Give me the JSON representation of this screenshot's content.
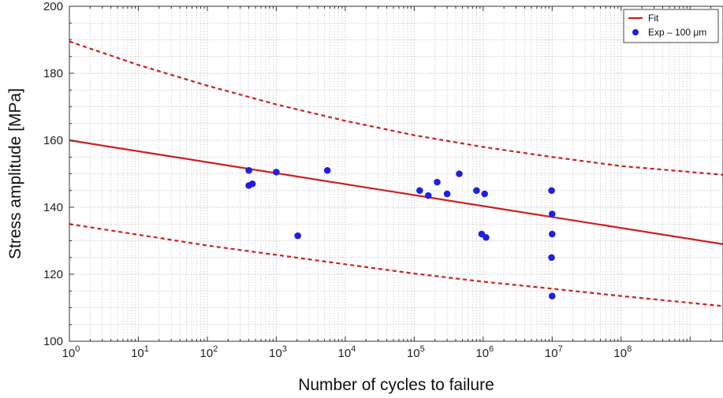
{
  "chart_data": {
    "type": "scatter",
    "xlabel": "Number of cycles to failure",
    "ylabel": "Stress amplitude [MPa]",
    "xscale": "log",
    "xlim": [
      1,
      3000000000
    ],
    "ylim": [
      100,
      200
    ],
    "grid": true,
    "legend_position": "top-right",
    "x_ticks": [
      {
        "value": 1,
        "base": "10",
        "exp": "0"
      },
      {
        "value": 10,
        "base": "10",
        "exp": "1"
      },
      {
        "value": 100,
        "base": "10",
        "exp": "2"
      },
      {
        "value": 1000,
        "base": "10",
        "exp": "3"
      },
      {
        "value": 10000,
        "base": "10",
        "exp": "4"
      },
      {
        "value": 100000,
        "base": "10",
        "exp": "5"
      },
      {
        "value": 1000000,
        "base": "10",
        "exp": "6"
      },
      {
        "value": 10000000,
        "base": "10",
        "exp": "7"
      },
      {
        "value": 100000000,
        "base": "10",
        "exp": "8"
      }
    ],
    "y_ticks": [
      "100",
      "120",
      "140",
      "160",
      "180",
      "200"
    ],
    "series": [
      {
        "name": "Fit",
        "kind": "line",
        "style": "solid",
        "color": "#cc1f1f",
        "x": [
          1,
          3000000000
        ],
        "y": [
          160,
          129
        ]
      },
      {
        "kind": "line",
        "style": "dashed",
        "color": "#cc1f1f",
        "x": [
          1,
          10,
          100,
          1000,
          10000,
          100000,
          1000000,
          10000000,
          100000000,
          3000000000
        ],
        "y": [
          189.5,
          182.5,
          176.3,
          170.7,
          165.8,
          161.5,
          158,
          155,
          152.3,
          149.7
        ]
      },
      {
        "kind": "line",
        "style": "dashed",
        "color": "#cc1f1f",
        "x": [
          1,
          10,
          100,
          1000,
          10000,
          100000,
          1000000,
          10000000,
          100000000,
          3000000000
        ],
        "y": [
          135,
          131.8,
          128.6,
          125.8,
          123,
          120.2,
          117.8,
          115.7,
          113.5,
          110.5
        ]
      },
      {
        "name": "Exp – 100 μm",
        "kind": "scatter",
        "color": "#1f1fe0",
        "points": [
          [
            400,
            151
          ],
          [
            400,
            146.5
          ],
          [
            450,
            147
          ],
          [
            1000,
            150.5
          ],
          [
            2050,
            131.5
          ],
          [
            5500,
            151
          ],
          [
            120000,
            145
          ],
          [
            160000,
            143.5
          ],
          [
            215000,
            147.5
          ],
          [
            300000,
            144
          ],
          [
            450000,
            150
          ],
          [
            800000,
            145
          ],
          [
            950000,
            132
          ],
          [
            1050000,
            144
          ],
          [
            1100000,
            131
          ],
          [
            9800000,
            145
          ],
          [
            10000000,
            138
          ],
          [
            10000000,
            132
          ],
          [
            9800000,
            125
          ],
          [
            10000000,
            113.5
          ]
        ]
      }
    ]
  }
}
